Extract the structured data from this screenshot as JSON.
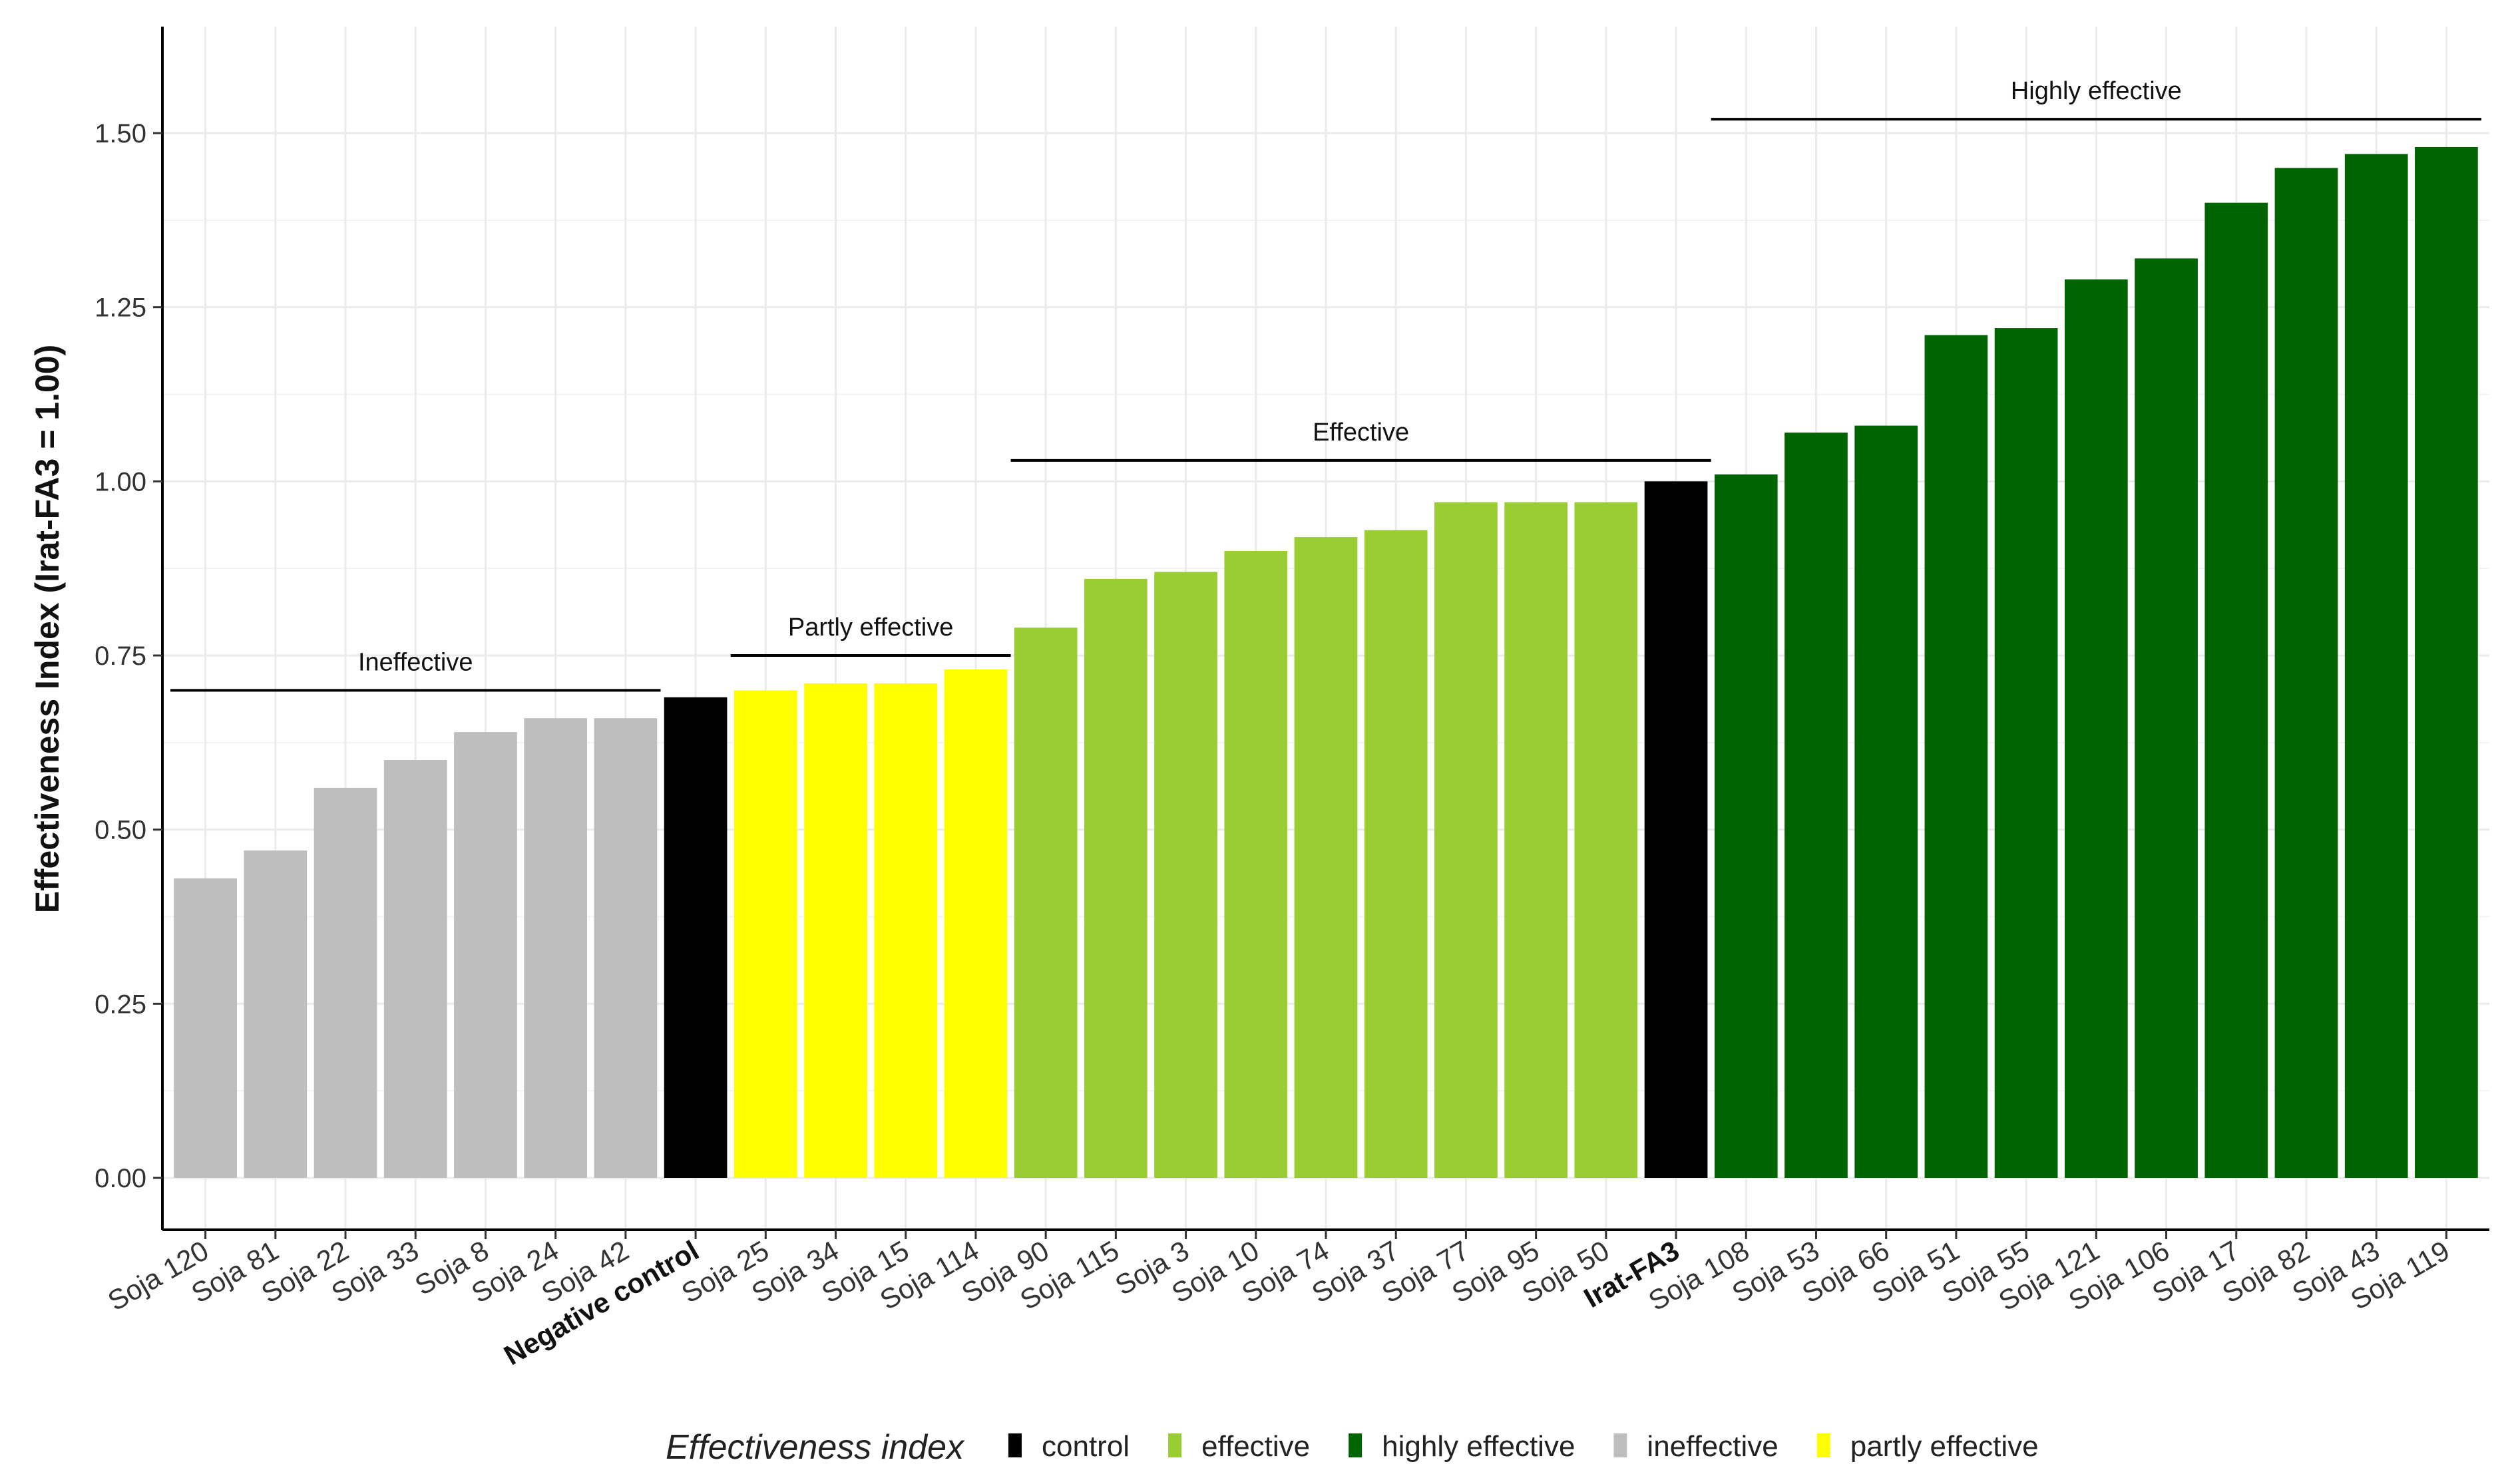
{
  "chart_data": {
    "type": "bar",
    "title": "",
    "xlabel": "",
    "ylabel": "Effectiveness Index (Irat-FA3 = 1.00)",
    "ylim": [
      0,
      1.65
    ],
    "yticks": [
      0,
      0.25,
      0.5,
      0.75,
      1.0,
      1.25,
      1.5
    ],
    "ytick_labels": [
      "0.00",
      "0.25",
      "0.50",
      "0.75",
      "1.00",
      "1.25",
      "1.50"
    ],
    "grid": true,
    "categories": [
      "Soja 120",
      "Soja 81",
      "Soja 22",
      "Soja 33",
      "Soja 8",
      "Soja 24",
      "Soja 42",
      "Negative control",
      "Soja 25",
      "Soja 34",
      "Soja 15",
      "Soja 114",
      "Soja 90",
      "Soja 115",
      "Soja 3",
      "Soja 10",
      "Soja 74",
      "Soja 37",
      "Soja 77",
      "Soja 95",
      "Soja 50",
      "Irat-FA3",
      "Soja 108",
      "Soja 53",
      "Soja 66",
      "Soja 51",
      "Soja 55",
      "Soja 121",
      "Soja 106",
      "Soja 17",
      "Soja 82",
      "Soja 43",
      "Soja 119"
    ],
    "values": [
      0.43,
      0.47,
      0.56,
      0.6,
      0.64,
      0.66,
      0.66,
      0.69,
      0.7,
      0.71,
      0.71,
      0.73,
      0.79,
      0.86,
      0.87,
      0.9,
      0.92,
      0.93,
      0.97,
      0.97,
      0.97,
      1.0,
      1.01,
      1.07,
      1.08,
      1.21,
      1.22,
      1.29,
      1.32,
      1.4,
      1.45,
      1.47,
      1.48
    ],
    "bar_classes": [
      "ineffective",
      "ineffective",
      "ineffective",
      "ineffective",
      "ineffective",
      "ineffective",
      "ineffective",
      "control",
      "partly effective",
      "partly effective",
      "partly effective",
      "partly effective",
      "effective",
      "effective",
      "effective",
      "effective",
      "effective",
      "effective",
      "effective",
      "effective",
      "effective",
      "control",
      "highly effective",
      "highly effective",
      "highly effective",
      "highly effective",
      "highly effective",
      "highly effective",
      "highly effective",
      "highly effective",
      "highly effective",
      "highly effective",
      "highly effective"
    ],
    "bold_categories": [
      "Negative control",
      "Irat-FA3"
    ],
    "class_colors": {
      "control": "#000000",
      "effective": "#9acd32",
      "highly effective": "#006400",
      "ineffective": "#bebebe",
      "partly effective": "#ffff00"
    },
    "group_annotations": [
      {
        "label": "Ineffective",
        "from": "Soja 120",
        "to": "Soja 42",
        "y": 0.7
      },
      {
        "label": "Partly effective",
        "from": "Soja 25",
        "to": "Soja 114",
        "y": 0.75
      },
      {
        "label": "Effective",
        "from": "Soja 90",
        "to": "Irat-FA3",
        "y": 1.03
      },
      {
        "label": "Highly effective",
        "from": "Soja 108",
        "to": "Soja 119",
        "y": 1.52
      }
    ],
    "legend": {
      "title": "Effectiveness index",
      "position": "bottom",
      "items": [
        "control",
        "effective",
        "highly effective",
        "ineffective",
        "partly effective"
      ]
    }
  }
}
